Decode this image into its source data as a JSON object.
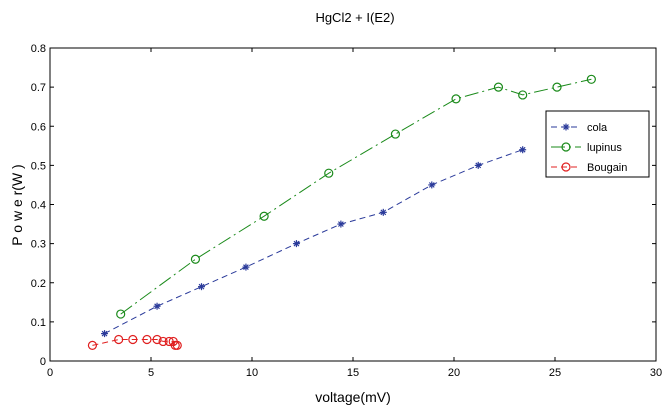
{
  "chart_data": {
    "type": "line",
    "title": "HgCl2 + I(E2)",
    "xlabel": "voltage(mV)",
    "ylabel": "P o w e r(W )",
    "xlim": [
      0,
      30
    ],
    "ylim": [
      0,
      0.8
    ],
    "x_ticks": [
      "0",
      "5",
      "10",
      "15",
      "20",
      "25",
      "30"
    ],
    "y_ticks": [
      "0",
      "0.1",
      "0.2",
      "0.3",
      "0.4",
      "0.5",
      "0.6",
      "0.7",
      "0.8"
    ],
    "grid": false,
    "legend_position": "top-right",
    "series": [
      {
        "name": "cola",
        "color": "#2a3a9a",
        "line_style": "dashed",
        "marker": "star",
        "points": [
          [
            2.7,
            0.07
          ],
          [
            5.3,
            0.14
          ],
          [
            7.5,
            0.19
          ],
          [
            9.7,
            0.24
          ],
          [
            12.2,
            0.3
          ],
          [
            14.4,
            0.35
          ],
          [
            16.5,
            0.38
          ],
          [
            18.9,
            0.45
          ],
          [
            21.2,
            0.5
          ],
          [
            23.4,
            0.54
          ]
        ]
      },
      {
        "name": "lupinus",
        "color": "#1a8a1a",
        "line_style": "dash-dot",
        "marker": "circle",
        "points": [
          [
            3.5,
            0.12
          ],
          [
            7.2,
            0.26
          ],
          [
            10.6,
            0.37
          ],
          [
            13.8,
            0.48
          ],
          [
            17.1,
            0.58
          ],
          [
            20.1,
            0.67
          ],
          [
            22.2,
            0.7
          ],
          [
            23.4,
            0.68
          ],
          [
            25.1,
            0.7
          ],
          [
            26.8,
            0.72
          ]
        ]
      },
      {
        "name": "Bougain",
        "color": "#e02020",
        "line_style": "dashed",
        "marker": "circle",
        "points": [
          [
            2.1,
            0.04
          ],
          [
            3.4,
            0.055
          ],
          [
            4.1,
            0.055
          ],
          [
            4.8,
            0.055
          ],
          [
            5.3,
            0.055
          ],
          [
            5.6,
            0.05
          ],
          [
            5.9,
            0.05
          ],
          [
            6.1,
            0.05
          ],
          [
            6.2,
            0.04
          ],
          [
            6.3,
            0.04
          ]
        ]
      }
    ]
  }
}
